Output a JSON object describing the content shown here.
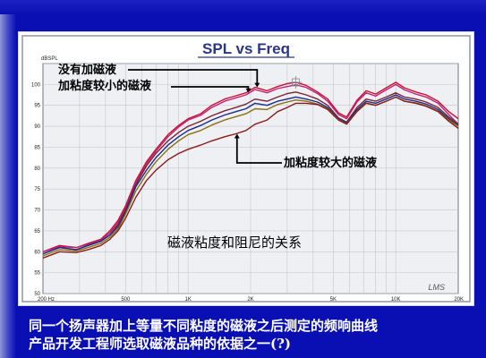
{
  "chart_data": {
    "type": "line",
    "title": "SPL vs Freq",
    "ylabel": "dBSPL",
    "ylim": [
      50,
      105
    ],
    "xlim": [
      200,
      20000
    ],
    "x_scale": "log",
    "grid": true,
    "y_ticks": [
      100,
      95,
      90,
      85,
      80,
      75,
      70,
      65,
      60,
      55,
      50
    ],
    "y_tick_labels": [
      "100",
      "95",
      "90",
      "85",
      "80",
      "75",
      "70",
      "65",
      "60",
      "55",
      "50"
    ],
    "x_ticks": [
      200,
      500,
      1000,
      2000,
      5000,
      10000,
      20000
    ],
    "x_tick_labels": [
      "200 Hz",
      "500",
      "1K",
      "2K",
      "5K",
      "10K",
      "20K"
    ],
    "series": [
      {
        "color": "#c8102e",
        "x": [
          200,
          240,
          290,
          330,
          380,
          420,
          460,
          500,
          560,
          630,
          700,
          800,
          900,
          1000,
          1150,
          1300,
          1500,
          1700,
          1900,
          2100,
          2400,
          2700,
          3000,
          3300,
          3700,
          4200,
          4700,
          5300,
          5800,
          6500,
          7200,
          8000,
          9000,
          10000,
          11000,
          12500,
          14000,
          16000,
          18000,
          20000
        ],
        "y": [
          60,
          61.5,
          61,
          62,
          63,
          65,
          67.5,
          71,
          77,
          81.5,
          84.5,
          88,
          90.2,
          91.8,
          93,
          95,
          96.5,
          97.3,
          98,
          99.3,
          98.5,
          99.5,
          100.2,
          100.5,
          99.8,
          98.2,
          96.5,
          93.2,
          92.2,
          96.2,
          98.5,
          97.7,
          99.2,
          100.5,
          99.2,
          98.2,
          97.5,
          96,
          93.5,
          91.8
        ]
      },
      {
        "color": "#c0207a",
        "x": [
          200,
          240,
          290,
          330,
          380,
          420,
          460,
          500,
          560,
          630,
          700,
          800,
          900,
          1000,
          1150,
          1300,
          1500,
          1700,
          1900,
          2100,
          2400,
          2700,
          3000,
          3300,
          3700,
          4200,
          4700,
          5300,
          5800,
          6500,
          7200,
          8000,
          9000,
          10000,
          11000,
          12500,
          14000,
          16000,
          18000,
          20000
        ],
        "y": [
          60,
          61.2,
          61,
          61.8,
          62.8,
          64.5,
          67,
          70.5,
          76.5,
          81,
          84,
          87.5,
          89.8,
          91.5,
          92.6,
          94.5,
          96,
          96.8,
          97.5,
          98.8,
          98,
          99,
          99.5,
          99.9,
          99.3,
          97.8,
          96,
          92.8,
          91.8,
          95.8,
          98,
          97.2,
          98.7,
          100,
          98.7,
          97.7,
          97,
          95.5,
          92.8,
          90.5
        ]
      },
      {
        "color": "#7a2530",
        "x": [
          200,
          240,
          290,
          330,
          380,
          420,
          460,
          500,
          560,
          630,
          700,
          800,
          900,
          1000,
          1150,
          1300,
          1500,
          1700,
          1900,
          2100,
          2400,
          2700,
          3000,
          3300,
          3700,
          4200,
          4700,
          5300,
          5800,
          6500,
          7200,
          8000,
          9000,
          10000,
          11000,
          12500,
          14000,
          16000,
          18000,
          20000
        ],
        "y": [
          59.5,
          61,
          60.5,
          61.5,
          62.5,
          64,
          66.5,
          70,
          76,
          80.5,
          83.5,
          86.5,
          88.5,
          90,
          91.2,
          92.5,
          93.7,
          94.5,
          95.3,
          96.5,
          96,
          97,
          97.8,
          98.2,
          97.5,
          96.5,
          95,
          92,
          91,
          94.5,
          96.5,
          96,
          97,
          98,
          97,
          96.5,
          95.8,
          94.5,
          92.2,
          90.5
        ]
      },
      {
        "color": "#1a2a8c",
        "x": [
          200,
          240,
          290,
          330,
          380,
          420,
          460,
          500,
          560,
          630,
          700,
          800,
          900,
          1000,
          1150,
          1300,
          1500,
          1700,
          1900,
          2100,
          2400,
          2700,
          3000,
          3300,
          3700,
          4200,
          4700,
          5300,
          5800,
          6500,
          7200,
          8000,
          9000,
          10000,
          11000,
          12500,
          14000,
          16000,
          18000,
          20000
        ],
        "y": [
          59.5,
          61,
          60.5,
          61.5,
          62.5,
          64,
          66,
          69.5,
          75.5,
          79.5,
          82.5,
          85.5,
          87.5,
          89,
          90.2,
          91.5,
          92.7,
          93.5,
          94.2,
          95.5,
          95,
          96,
          96.5,
          97,
          96.5,
          95.8,
          94.5,
          91.8,
          90.8,
          94,
          96,
          95.5,
          96.5,
          97.5,
          96.5,
          96,
          95.3,
          94,
          91.8,
          90.2
        ]
      },
      {
        "color": "#8a6e10",
        "x": [
          200,
          240,
          290,
          330,
          380,
          420,
          460,
          500,
          560,
          630,
          700,
          800,
          900,
          1000,
          1150,
          1300,
          1500,
          1700,
          1900,
          2100,
          2400,
          2700,
          3000,
          3300,
          3700,
          4200,
          4700,
          5300,
          5800,
          6500,
          7200,
          8000,
          9000,
          10000,
          11000,
          12500,
          14000,
          16000,
          18000,
          20000
        ],
        "y": [
          59,
          60.5,
          60.2,
          61,
          62,
          63.5,
          65.5,
          69,
          74.5,
          78.5,
          81.5,
          84.5,
          86.5,
          88,
          89,
          90.3,
          91.5,
          92.3,
          93,
          94.2,
          94,
          95.2,
          95.8,
          96.3,
          96,
          95.3,
          94.2,
          91.6,
          90.6,
          93.6,
          95.6,
          95,
          96,
          97,
          96,
          95.6,
          94.9,
          93.6,
          91.5,
          90
        ]
      },
      {
        "color": "#8b1a1a",
        "x": [
          200,
          240,
          290,
          330,
          380,
          420,
          460,
          500,
          560,
          630,
          700,
          800,
          900,
          1000,
          1150,
          1300,
          1500,
          1700,
          1900,
          2100,
          2400,
          2700,
          3000,
          3300,
          3700,
          4200,
          4700,
          5300,
          5800,
          6500,
          7200,
          8000,
          9000,
          10000,
          11000,
          12500,
          14000,
          16000,
          18000,
          20000
        ],
        "y": [
          58.5,
          60,
          59.8,
          60.5,
          61.5,
          63,
          65,
          68,
          73,
          77,
          79.5,
          82,
          83.5,
          84.5,
          85.5,
          86.5,
          87.5,
          88.2,
          89,
          90.5,
          91.5,
          93.5,
          94.5,
          95.5,
          95.5,
          95.2,
          94,
          91.5,
          90.5,
          93.5,
          95.5,
          95,
          96,
          97,
          96,
          95.5,
          94.8,
          93.5,
          91.2,
          89.5
        ]
      }
    ],
    "annotations": [
      {
        "text": "没有加磁液",
        "point_x": 2150,
        "point_y": 99.3
      },
      {
        "text": "加粘度较小的磁液",
        "point_x": 1950,
        "point_y": 98.0
      },
      {
        "text": "加粘度较大的磁液",
        "point_x": 1720,
        "point_y": 88.2
      },
      {
        "text": "磁液粘度和阻尼的关系"
      }
    ],
    "watermark": "LMS"
  },
  "caption": {
    "line1": "同一个扬声器加上等量不同粘度的磁液之后测定的频响曲线",
    "line2": "产品开发工程师选取磁液品种的依据之一(?)"
  },
  "colors": {
    "background": "#0a0fb4",
    "plot_background": "#eef0f3",
    "title": "#2a3688"
  }
}
